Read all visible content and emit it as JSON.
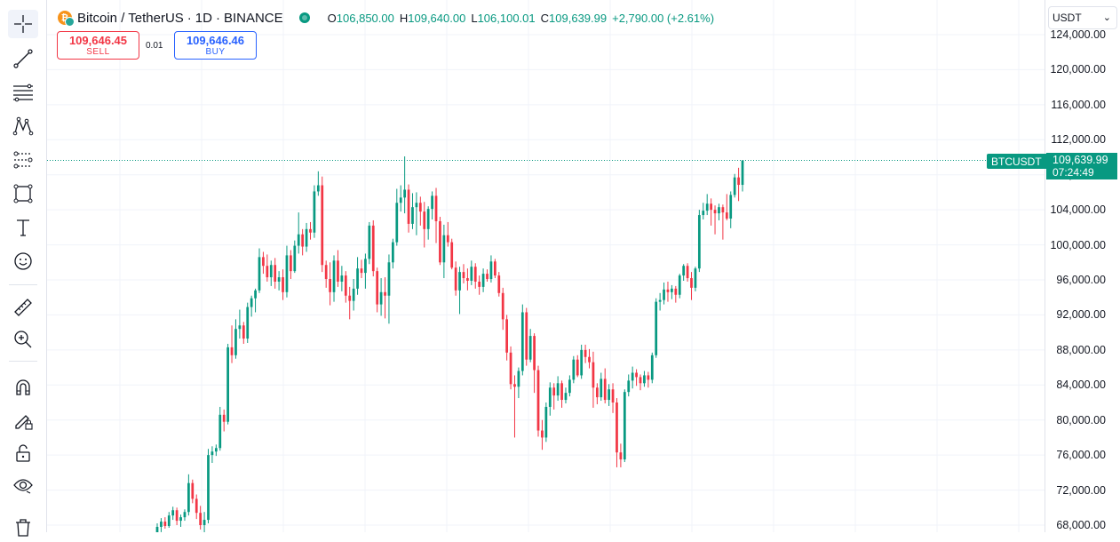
{
  "legend": {
    "symbol": "Bitcoin / TetherUS",
    "separator": "·",
    "interval": "1D",
    "exchange": "BINANCE",
    "open_label": "O",
    "open": "106,850.00",
    "high_label": "H",
    "high": "109,640.00",
    "low_label": "L",
    "low": "106,100.01",
    "close_label": "C",
    "close": "109,639.99",
    "change": "+2,790.00 (+2.61%)"
  },
  "trade": {
    "sell_price": "109,646.45",
    "sell_label": "SELL",
    "spread": "0.01",
    "buy_price": "109,646.46",
    "buy_label": "BUY"
  },
  "currency_select": "USDT",
  "price_axis_labels": [
    "124,000.00",
    "120,000.00",
    "116,000.00",
    "112,000.00",
    "108,000.00",
    "104,000.00",
    "100,000.00",
    "96,000.00",
    "92,000.00",
    "88,000.00",
    "84,000.00",
    "80,000.00",
    "76,000.00",
    "72,000.00",
    "68,000.00"
  ],
  "last_price": {
    "symbol_tag": "BTCUSDT",
    "price": "109,639.99",
    "countdown": "07:24:49"
  },
  "tools": [
    "crosshair-icon",
    "trend-line-icon",
    "fib-retracement-icon",
    "pattern-icon",
    "prediction-icon",
    "geometric-shapes-icon",
    "text-icon",
    "emoji-icon",
    "ruler-icon",
    "zoom-in-icon",
    "magnet-icon",
    "lock-drawing-icon",
    "unlock-icon",
    "eye-icon",
    "trash-icon"
  ],
  "colors": {
    "up": "#089981",
    "down": "#f23645",
    "grid": "#f0f3fa",
    "accent": "#2962ff"
  },
  "chart_data": {
    "type": "candlestick",
    "ylim": [
      66000,
      126000
    ],
    "yticks": [
      124000,
      120000,
      116000,
      112000,
      108000,
      104000,
      100000,
      96000,
      92000,
      88000,
      84000,
      80000,
      76000,
      72000,
      68000
    ],
    "last_price": 109639.99,
    "ohlc": [
      [
        66500,
        68200,
        66000,
        67800
      ],
      [
        67800,
        68800,
        67200,
        68400
      ],
      [
        68400,
        68900,
        67600,
        67900
      ],
      [
        67900,
        69500,
        67700,
        69100
      ],
      [
        69100,
        70100,
        68600,
        69700
      ],
      [
        69700,
        70000,
        68000,
        68500
      ],
      [
        68500,
        69200,
        67800,
        68900
      ],
      [
        68900,
        69800,
        68500,
        69500
      ],
      [
        69500,
        73800,
        69100,
        72800
      ],
      [
        72800,
        73200,
        70500,
        71000
      ],
      [
        71000,
        71500,
        68700,
        69400
      ],
      [
        69400,
        70200,
        67500,
        68000
      ],
      [
        68000,
        69500,
        67100,
        68600
      ],
      [
        68600,
        76700,
        68200,
        76000
      ],
      [
        76000,
        77000,
        75100,
        76400
      ],
      [
        76400,
        77200,
        75900,
        76800
      ],
      [
        76800,
        81500,
        76500,
        80600
      ],
      [
        80600,
        81200,
        78700,
        79800
      ],
      [
        79800,
        88700,
        79500,
        88300
      ],
      [
        88300,
        90800,
        86500,
        87400
      ],
      [
        87400,
        91500,
        87000,
        90400
      ],
      [
        90400,
        92600,
        89300,
        90800
      ],
      [
        90800,
        91200,
        88700,
        89300
      ],
      [
        89300,
        93400,
        88800,
        92900
      ],
      [
        92900,
        94200,
        91800,
        93900
      ],
      [
        93900,
        95000,
        92300,
        94800
      ],
      [
        94800,
        99600,
        94500,
        98600
      ],
      [
        98600,
        99200,
        96700,
        97600
      ],
      [
        97600,
        98900,
        95800,
        96300
      ],
      [
        96300,
        98200,
        95300,
        97700
      ],
      [
        97700,
        98500,
        95000,
        95800
      ],
      [
        95800,
        97000,
        94800,
        96300
      ],
      [
        96300,
        97200,
        93700,
        94600
      ],
      [
        94600,
        99900,
        94000,
        98800
      ],
      [
        98800,
        99400,
        96100,
        97000
      ],
      [
        97000,
        100500,
        96800,
        99900
      ],
      [
        99900,
        103700,
        99000,
        101200
      ],
      [
        101200,
        101800,
        98800,
        99800
      ],
      [
        99800,
        102500,
        99200,
        101800
      ],
      [
        101800,
        102600,
        100600,
        101400
      ],
      [
        101400,
        106800,
        100800,
        106100
      ],
      [
        106100,
        108400,
        105600,
        106800
      ],
      [
        106800,
        107800,
        96900,
        97700
      ],
      [
        97700,
        98200,
        95100,
        96100
      ],
      [
        96100,
        98000,
        93100,
        94600
      ],
      [
        94600,
        98800,
        93500,
        98200
      ],
      [
        98200,
        99400,
        95200,
        95800
      ],
      [
        95800,
        97600,
        94700,
        96500
      ],
      [
        96500,
        97000,
        93400,
        94200
      ],
      [
        94200,
        95200,
        91500,
        93600
      ],
      [
        93600,
        96100,
        92500,
        95000
      ],
      [
        95000,
        98600,
        94300,
        97300
      ],
      [
        97300,
        98300,
        96200,
        96800
      ],
      [
        96800,
        99000,
        95000,
        98400
      ],
      [
        98400,
        102600,
        97800,
        102200
      ],
      [
        102200,
        102800,
        96400,
        97000
      ],
      [
        97000,
        97400,
        92300,
        93200
      ],
      [
        93200,
        96200,
        91900,
        94600
      ],
      [
        94600,
        96300,
        91600,
        94200
      ],
      [
        94200,
        98900,
        91000,
        98000
      ],
      [
        98000,
        100700,
        97300,
        100300
      ],
      [
        100300,
        106400,
        99900,
        104800
      ],
      [
        104800,
        106800,
        103800,
        105400
      ],
      [
        105400,
        110100,
        103600,
        106300
      ],
      [
        106300,
        106900,
        101400,
        102400
      ],
      [
        102400,
        105900,
        101800,
        104300
      ],
      [
        104300,
        106000,
        101100,
        104800
      ],
      [
        104800,
        105500,
        102200,
        103800
      ],
      [
        103800,
        104900,
        99700,
        101800
      ],
      [
        101800,
        104400,
        100600,
        104100
      ],
      [
        104100,
        106100,
        102900,
        105600
      ],
      [
        105600,
        106500,
        100200,
        102700
      ],
      [
        102700,
        103200,
        97700,
        98000
      ],
      [
        98000,
        102300,
        96200,
        101100
      ],
      [
        101100,
        102600,
        99800,
        100300
      ],
      [
        100300,
        100700,
        97200,
        97400
      ],
      [
        97400,
        98100,
        94200,
        94800
      ],
      [
        94800,
        97500,
        92100,
        96900
      ],
      [
        96900,
        97800,
        95600,
        96200
      ],
      [
        96200,
        97300,
        94800,
        95900
      ],
      [
        95900,
        98200,
        95400,
        97500
      ],
      [
        97500,
        97900,
        95000,
        95800
      ],
      [
        95800,
        96500,
        94300,
        95200
      ],
      [
        95200,
        97300,
        94600,
        96700
      ],
      [
        96700,
        97200,
        95800,
        96100
      ],
      [
        96100,
        98800,
        95700,
        98100
      ],
      [
        98100,
        98400,
        96200,
        96500
      ],
      [
        96500,
        96900,
        94100,
        94500
      ],
      [
        94500,
        95100,
        90300,
        91500
      ],
      [
        91500,
        92000,
        86800,
        87700
      ],
      [
        87700,
        88400,
        83500,
        84100
      ],
      [
        84100,
        85100,
        78000,
        83800
      ],
      [
        83800,
        86000,
        82500,
        85600
      ],
      [
        85600,
        93200,
        85100,
        92300
      ],
      [
        92300,
        92800,
        86200,
        86900
      ],
      [
        86900,
        90400,
        86600,
        89600
      ],
      [
        89600,
        89900,
        83100,
        85700
      ],
      [
        85700,
        86200,
        78100,
        78800
      ],
      [
        78800,
        80000,
        76600,
        78000
      ],
      [
        78000,
        82000,
        77500,
        81500
      ],
      [
        81500,
        84300,
        80500,
        83700
      ],
      [
        83700,
        84200,
        81200,
        82800
      ],
      [
        82800,
        85000,
        82200,
        84200
      ],
      [
        84200,
        84500,
        81400,
        82300
      ],
      [
        82300,
        83700,
        81900,
        83100
      ],
      [
        83100,
        85100,
        82700,
        84600
      ],
      [
        84600,
        87300,
        84200,
        86900
      ],
      [
        86900,
        87400,
        84900,
        85100
      ],
      [
        85100,
        88600,
        84700,
        88000
      ],
      [
        88000,
        88600,
        86500,
        87200
      ],
      [
        87200,
        88100,
        85900,
        86600
      ],
      [
        86600,
        87800,
        81400,
        83700
      ],
      [
        83700,
        84200,
        81800,
        82600
      ],
      [
        82600,
        85400,
        82200,
        84700
      ],
      [
        84700,
        85900,
        81900,
        82300
      ],
      [
        82300,
        84100,
        81600,
        83500
      ],
      [
        83500,
        84200,
        80800,
        82000
      ],
      [
        82000,
        82500,
        74600,
        76300
      ],
      [
        76300,
        77300,
        74600,
        75500
      ],
      [
        75500,
        83500,
        75200,
        83200
      ],
      [
        83200,
        85200,
        82700,
        84500
      ],
      [
        84500,
        86100,
        83600,
        85400
      ],
      [
        85400,
        85800,
        83900,
        84900
      ],
      [
        84900,
        85200,
        83400,
        84200
      ],
      [
        84200,
        85600,
        83800,
        85100
      ],
      [
        85100,
        85500,
        83700,
        84600
      ],
      [
        84600,
        87700,
        84200,
        87400
      ],
      [
        87400,
        93900,
        87100,
        93500
      ],
      [
        93500,
        94500,
        92500,
        93700
      ],
      [
        93700,
        95700,
        93200,
        94900
      ],
      [
        94900,
        95800,
        93500,
        94600
      ],
      [
        94600,
        95400,
        93800,
        95000
      ],
      [
        95000,
        95300,
        93400,
        94300
      ],
      [
        94300,
        96700,
        93900,
        96500
      ],
      [
        96500,
        97800,
        95900,
        97600
      ],
      [
        97600,
        97900,
        95800,
        96200
      ],
      [
        96200,
        96900,
        93700,
        95100
      ],
      [
        95100,
        97500,
        94700,
        97300
      ],
      [
        97300,
        104000,
        96900,
        103400
      ],
      [
        103400,
        104800,
        102900,
        103900
      ],
      [
        103900,
        105800,
        103400,
        104700
      ],
      [
        104700,
        105300,
        102200,
        104000
      ],
      [
        104000,
        104500,
        101200,
        103600
      ],
      [
        103600,
        104700,
        102800,
        104300
      ],
      [
        104300,
        104600,
        100600,
        103700
      ],
      [
        103700,
        105800,
        102800,
        103000
      ],
      [
        103000,
        106100,
        101900,
        105700
      ],
      [
        105700,
        108100,
        105400,
        107700
      ],
      [
        107700,
        108800,
        105000,
        106850
      ],
      [
        106850,
        109640,
        106100,
        109639.99
      ]
    ]
  }
}
